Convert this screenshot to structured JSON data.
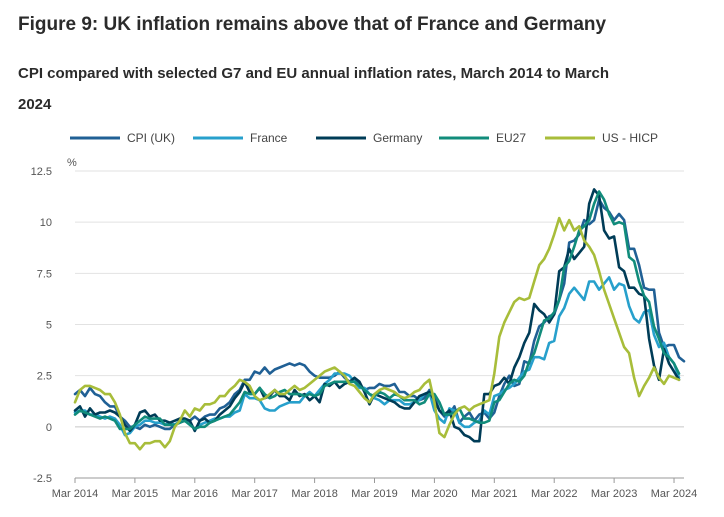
{
  "title": "Figure 9: UK inflation remains above that of France and Germany",
  "subtitle": "CPI compared with selected G7 and EU annual inflation rates, March 2014 to March 2024",
  "chart_data": {
    "type": "line",
    "ylabel": "%",
    "ylim": [
      -2.5,
      12.5
    ],
    "yticks": [
      -2.5,
      0,
      2.5,
      5,
      7.5,
      10,
      12.5
    ],
    "ytick_labels": [
      "-2.5",
      "0",
      "2.5",
      "5",
      "7.5",
      "10",
      "12.5"
    ],
    "x_start": "2014-03",
    "x_end": "2024-03",
    "xtick_labels": [
      "Mar 2014",
      "Mar 2015",
      "Mar 2016",
      "Mar 2017",
      "Mar 2018",
      "Mar 2019",
      "Mar 2020",
      "Mar 2021",
      "Mar 2022",
      "Mar 2023",
      "Mar 2024"
    ],
    "grid": "horizontal",
    "legend_position": "top",
    "series": [
      {
        "name": "CPI (UK)",
        "color": "#206095",
        "values": [
          1.6,
          1.8,
          1.5,
          1.9,
          1.6,
          1.5,
          1.2,
          1.0,
          1.0,
          0.5,
          0.3,
          0.0,
          0.0,
          -0.1,
          0.1,
          0.0,
          0.1,
          0.0,
          -0.1,
          -0.1,
          0.1,
          0.2,
          0.3,
          0.3,
          0.5,
          0.3,
          0.5,
          0.6,
          0.6,
          0.9,
          1.0,
          1.2,
          1.6,
          1.8,
          2.3,
          2.3,
          2.7,
          2.6,
          2.9,
          2.6,
          2.8,
          2.9,
          3.0,
          3.1,
          3.0,
          3.1,
          3.0,
          2.7,
          2.5,
          2.4,
          2.4,
          2.4,
          2.5,
          2.7,
          2.4,
          2.2,
          2.3,
          2.1,
          1.8,
          1.9,
          1.9,
          2.1,
          2.0,
          2.0,
          2.1,
          1.7,
          1.7,
          1.5,
          1.5,
          1.3,
          1.4,
          1.8,
          1.5,
          0.8,
          0.5,
          0.6,
          1.0,
          0.2,
          0.5,
          0.7,
          0.3,
          0.6,
          0.7,
          0.4,
          0.7,
          1.5,
          2.1,
          2.5,
          2.0,
          2.1,
          3.2,
          3.1,
          4.2,
          4.9,
          5.1,
          5.4,
          5.5,
          6.2,
          7.0,
          9.0,
          9.1,
          9.4,
          10.1,
          9.9,
          10.1,
          11.1,
          10.7,
          10.5,
          10.1,
          10.4,
          10.1,
          8.7,
          8.7,
          7.9,
          6.8,
          6.7,
          6.7,
          4.6,
          3.9,
          4.0,
          4.0,
          3.4,
          3.2
        ]
      },
      {
        "name": "France",
        "color": "#27a0cc",
        "values": [
          0.7,
          0.8,
          0.8,
          0.6,
          0.6,
          0.5,
          0.4,
          0.5,
          0.4,
          0.1,
          -0.4,
          -0.3,
          0.0,
          0.1,
          0.3,
          0.3,
          0.2,
          0.2,
          0.1,
          0.2,
          0.1,
          0.3,
          0.3,
          0.1,
          -0.1,
          0.1,
          0.2,
          0.3,
          0.4,
          0.4,
          0.5,
          0.5,
          0.7,
          0.8,
          1.6,
          1.4,
          1.4,
          1.3,
          0.9,
          0.8,
          0.8,
          1.0,
          1.1,
          1.2,
          1.2,
          1.2,
          1.5,
          1.7,
          1.5,
          1.8,
          2.1,
          2.3,
          2.6,
          2.6,
          2.6,
          2.5,
          2.2,
          1.9,
          1.9,
          1.6,
          1.4,
          1.3,
          1.1,
          1.3,
          1.3,
          1.3,
          1.1,
          1.1,
          1.2,
          1.3,
          1.6,
          1.7,
          0.8,
          0.4,
          0.2,
          0.9,
          0.8,
          0.2,
          0.0,
          0.0,
          0.2,
          0.3,
          0.8,
          0.6,
          1.5,
          1.6,
          1.8,
          1.9,
          2.1,
          2.4,
          2.7,
          2.8,
          3.4,
          3.4,
          3.3,
          4.1,
          4.2,
          5.4,
          5.8,
          6.5,
          6.8,
          6.5,
          6.2,
          7.1,
          7.1,
          6.7,
          7.0,
          7.3,
          6.7,
          7.0,
          6.9,
          5.9,
          5.3,
          5.1,
          5.6,
          5.7,
          4.5,
          3.9,
          4.1,
          3.4,
          3.1,
          2.4
        ]
      },
      {
        "name": "Germany",
        "color": "#003c57",
        "values": [
          0.8,
          1.0,
          0.5,
          0.9,
          0.6,
          0.7,
          0.7,
          0.8,
          0.7,
          0.5,
          0.1,
          -0.2,
          0.1,
          0.7,
          0.8,
          0.5,
          0.6,
          0.3,
          0.3,
          0.2,
          0.3,
          0.4,
          0.4,
          0.3,
          -0.2,
          0.3,
          0.4,
          0.2,
          0.3,
          0.6,
          0.8,
          1.0,
          1.4,
          1.7,
          2.2,
          1.7,
          1.6,
          1.9,
          1.4,
          1.5,
          1.8,
          1.5,
          1.5,
          1.3,
          1.8,
          1.5,
          1.6,
          1.3,
          1.5,
          1.2,
          2.1,
          2.0,
          2.2,
          1.9,
          2.1,
          2.2,
          2.4,
          2.2,
          1.7,
          1.1,
          1.6,
          1.5,
          1.4,
          1.3,
          1.2,
          1.0,
          0.9,
          0.9,
          1.2,
          1.5,
          1.6,
          1.7,
          1.3,
          0.8,
          0.6,
          0.8,
          0.0,
          -0.1,
          -0.4,
          -0.5,
          -0.7,
          -0.7,
          1.6,
          1.6,
          2.0,
          2.1,
          2.4,
          2.1,
          2.9,
          3.4,
          4.1,
          4.6,
          6.0,
          5.7,
          5.5,
          5.1,
          5.5,
          7.6,
          7.8,
          8.7,
          8.2,
          8.5,
          8.8,
          10.9,
          11.6,
          11.3,
          9.6,
          9.2,
          9.3,
          7.8,
          7.6,
          6.8,
          6.8,
          6.5,
          6.4,
          4.3,
          3.0,
          2.3,
          3.8,
          3.1,
          2.7,
          2.3
        ]
      },
      {
        "name": "EU27",
        "color": "#118c7b",
        "values": [
          0.6,
          0.8,
          0.7,
          0.6,
          0.5,
          0.4,
          0.5,
          0.4,
          0.3,
          -0.1,
          -0.1,
          -0.1,
          0.1,
          0.3,
          0.5,
          0.4,
          0.4,
          0.4,
          0.1,
          0.1,
          0.1,
          0.2,
          0.3,
          0.1,
          -0.1,
          0.0,
          0.0,
          0.2,
          0.3,
          0.4,
          0.5,
          0.6,
          0.9,
          1.2,
          1.7,
          1.6,
          1.6,
          1.9,
          1.6,
          1.4,
          1.5,
          1.7,
          1.8,
          1.6,
          1.6,
          1.6,
          1.5,
          1.6,
          1.5,
          1.6,
          2.0,
          2.1,
          2.2,
          2.2,
          2.2,
          2.2,
          2.2,
          2.0,
          1.8,
          1.6,
          1.5,
          1.7,
          1.6,
          1.4,
          1.6,
          1.5,
          1.3,
          1.3,
          1.3,
          1.1,
          1.2,
          1.6,
          1.6,
          1.2,
          0.6,
          0.6,
          0.7,
          0.9,
          0.4,
          0.4,
          0.3,
          0.2,
          0.2,
          0.3,
          1.2,
          1.3,
          1.7,
          2.1,
          2.3,
          2.2,
          2.5,
          3.2,
          3.6,
          4.4,
          5.2,
          5.3,
          5.6,
          6.2,
          7.8,
          8.1,
          8.8,
          9.6,
          9.8,
          10.1,
          10.9,
          11.5,
          11.1,
          10.4,
          9.9,
          10.0,
          9.9,
          8.3,
          8.1,
          7.1,
          6.4,
          6.1,
          4.9,
          4.3,
          3.6,
          3.4,
          3.1,
          2.6
        ]
      },
      {
        "name": "US - HICP",
        "color": "#a8bd3a",
        "values": [
          1.2,
          1.8,
          2.0,
          2.0,
          1.9,
          1.8,
          1.6,
          1.6,
          1.2,
          0.6,
          -0.3,
          -0.8,
          -0.8,
          -1.1,
          -0.8,
          -0.8,
          -0.7,
          -0.7,
          -1.0,
          -0.7,
          0.0,
          0.3,
          0.8,
          0.5,
          0.9,
          0.8,
          1.1,
          1.1,
          1.2,
          1.5,
          1.5,
          1.8,
          2.0,
          2.3,
          2.2,
          2.0,
          1.5,
          1.3,
          1.4,
          1.6,
          1.8,
          1.6,
          1.6,
          1.8,
          2.0,
          1.8,
          1.9,
          2.1,
          2.3,
          2.5,
          2.7,
          2.8,
          2.9,
          2.7,
          2.5,
          2.1,
          2.0,
          1.7,
          1.4,
          1.2,
          1.6,
          1.8,
          1.9,
          1.8,
          1.7,
          1.5,
          1.4,
          1.5,
          1.7,
          1.8,
          2.1,
          2.3,
          1.2,
          -0.3,
          -0.5,
          0.1,
          0.6,
          0.9,
          1.0,
          0.8,
          1.0,
          1.1,
          1.2,
          1.3,
          2.6,
          4.4,
          5.1,
          5.6,
          6.1,
          6.3,
          6.2,
          6.3,
          7.1,
          7.9,
          8.2,
          8.7,
          9.4,
          10.2,
          9.6,
          10.1,
          9.6,
          9.8,
          9.1,
          8.8,
          8.4,
          7.6,
          6.7,
          6.0,
          5.3,
          4.6,
          3.9,
          3.6,
          2.4,
          1.5,
          2.0,
          2.4,
          2.9,
          2.4,
          2.1,
          2.5,
          2.4,
          2.3
        ]
      }
    ]
  }
}
